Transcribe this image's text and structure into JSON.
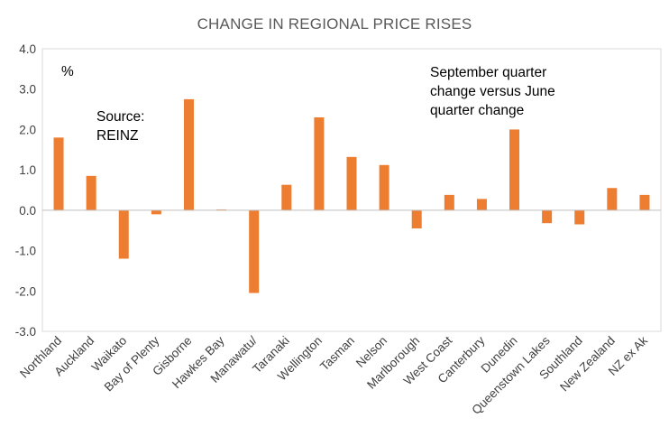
{
  "chart_data": {
    "type": "bar",
    "title": "CHANGE IN REGIONAL PRICE RISES",
    "ylabel": "%",
    "xlabel": "",
    "ylim": [
      -3.0,
      4.0
    ],
    "yticks": [
      4.0,
      3.0,
      2.0,
      1.0,
      0.0,
      -1.0,
      -2.0,
      -3.0
    ],
    "ytick_labels": [
      "4.0",
      "3.0",
      "2.0",
      "1.0",
      "0.0",
      "-1.0",
      "-2.0",
      "-3.0"
    ],
    "categories": [
      "Northland",
      "Auckland",
      "Waikato",
      "Bay of Plenty",
      "Gisborne",
      "Hawkes Bay",
      "Manawatu/",
      "Taranaki",
      "Wellington",
      "Tasman",
      "Nelson",
      "Marlborough",
      "West Coast",
      "Canterbury",
      "Dunedin",
      "Queenstown Lakes",
      "Southland",
      "New Zealand",
      "NZ ex Ak"
    ],
    "values": [
      1.8,
      0.85,
      -1.2,
      -0.1,
      2.75,
      0.02,
      -2.05,
      0.63,
      2.3,
      1.32,
      1.12,
      -0.45,
      0.38,
      0.28,
      2.0,
      -0.32,
      -0.35,
      0.55,
      0.38
    ],
    "bar_color": "#ED7D31",
    "annotations": {
      "source": [
        "Source:",
        "REINZ"
      ],
      "note": [
        "September quarter",
        "change versus June",
        "quarter change"
      ]
    },
    "grid": false
  }
}
